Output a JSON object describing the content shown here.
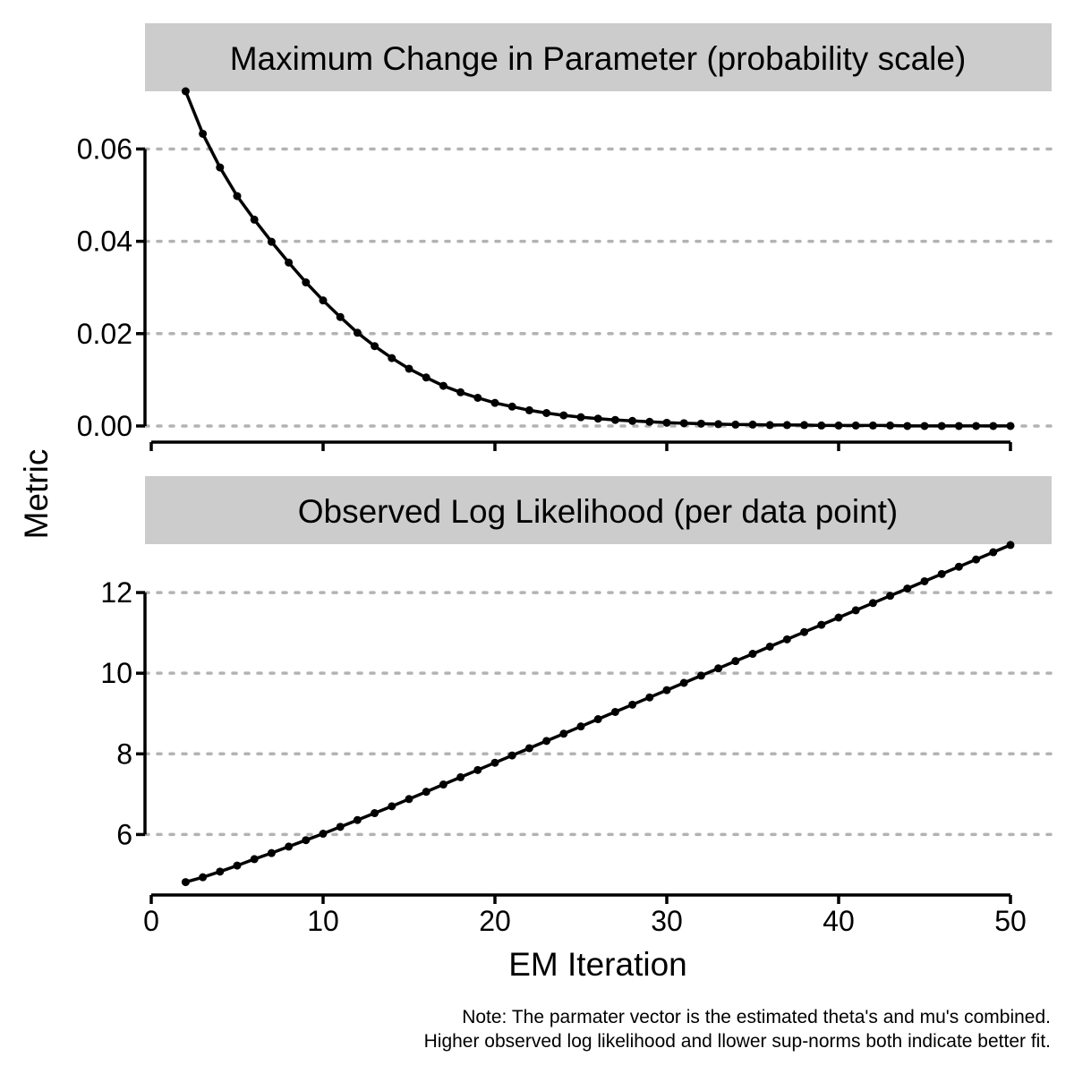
{
  "chart_data": {
    "type": "line",
    "ylabel": "Metric",
    "xlabel": "EM Iteration",
    "note_lines": [
      "Note: The parmater vector is the estimated theta's and mu's combined.",
      "Higher observed log likelihood and llower sup-norms both indicate better fit."
    ],
    "x_axis": {
      "range": [
        0,
        50
      ],
      "ticks": [
        0,
        10,
        20,
        30,
        40,
        50
      ],
      "tick_labels": [
        "0",
        "10",
        "20",
        "30",
        "40",
        "50"
      ]
    },
    "grid": "horizontal dotted",
    "panels": [
      {
        "title": "Maximum Change in Parameter (probability scale)",
        "y_range": [
          -0.0035,
          0.0725
        ],
        "y_ticks": [
          0,
          0.02,
          0.04,
          0.06
        ],
        "y_tick_labels": [
          "0.00",
          "0.02",
          "0.04",
          "0.06"
        ],
        "series": [
          {
            "x": [
              2,
              3,
              4,
              5,
              6,
              7,
              8,
              9,
              10,
              11,
              12,
              13,
              14,
              15,
              16,
              17,
              18,
              19,
              20,
              21,
              22,
              23,
              24,
              25,
              26,
              27,
              28,
              29,
              30,
              31,
              32,
              33,
              34,
              35,
              36,
              37,
              38,
              39,
              40,
              41,
              42,
              43,
              44,
              45,
              46,
              47,
              48,
              49,
              50
            ],
            "values": [
              0.0725,
              0.0633,
              0.056,
              0.0498,
              0.0447,
              0.0399,
              0.0354,
              0.0311,
              0.0272,
              0.0236,
              0.0202,
              0.0173,
              0.0147,
              0.0124,
              0.0105,
              0.0087,
              0.0073,
              0.0061,
              0.005,
              0.0042,
              0.0034,
              0.0028,
              0.0023,
              0.0019,
              0.0016,
              0.0013,
              0.0011,
              0.0009,
              0.0007,
              0.0006,
              0.0005,
              0.0004,
              0.0003,
              0.0003,
              0.0002,
              0.0002,
              0.0002,
              0.0001,
              0.0001,
              0.0001,
              0.0001,
              0.0001,
              0.0,
              0.0,
              0.0,
              0.0,
              0.0,
              0.0,
              0.0
            ]
          }
        ]
      },
      {
        "title": "Observed Log Likelihood (per data point)",
        "y_range": [
          4.5,
          13.2
        ],
        "y_ticks": [
          6,
          8,
          10,
          12
        ],
        "y_tick_labels": [
          "6",
          "8",
          "10",
          "12"
        ],
        "series": [
          {
            "x": [
              2,
              3,
              4,
              5,
              6,
              7,
              8,
              9,
              10,
              11,
              12,
              13,
              14,
              15,
              16,
              17,
              18,
              19,
              20,
              21,
              22,
              23,
              24,
              25,
              26,
              27,
              28,
              29,
              30,
              31,
              32,
              33,
              34,
              35,
              36,
              37,
              38,
              39,
              40,
              41,
              42,
              43,
              44,
              45,
              46,
              47,
              48,
              49,
              50
            ],
            "values": [
              4.82,
              4.94,
              5.08,
              5.23,
              5.39,
              5.54,
              5.7,
              5.86,
              6.02,
              6.19,
              6.36,
              6.53,
              6.7,
              6.88,
              7.06,
              7.24,
              7.42,
              7.6,
              7.78,
              7.96,
              8.14,
              8.32,
              8.5,
              8.68,
              8.86,
              9.04,
              9.22,
              9.4,
              9.58,
              9.76,
              9.94,
              10.12,
              10.3,
              10.48,
              10.66,
              10.84,
              11.02,
              11.2,
              11.38,
              11.56,
              11.74,
              11.92,
              12.1,
              12.28,
              12.46,
              12.64,
              12.82,
              13.0,
              13.18
            ]
          }
        ]
      }
    ]
  }
}
